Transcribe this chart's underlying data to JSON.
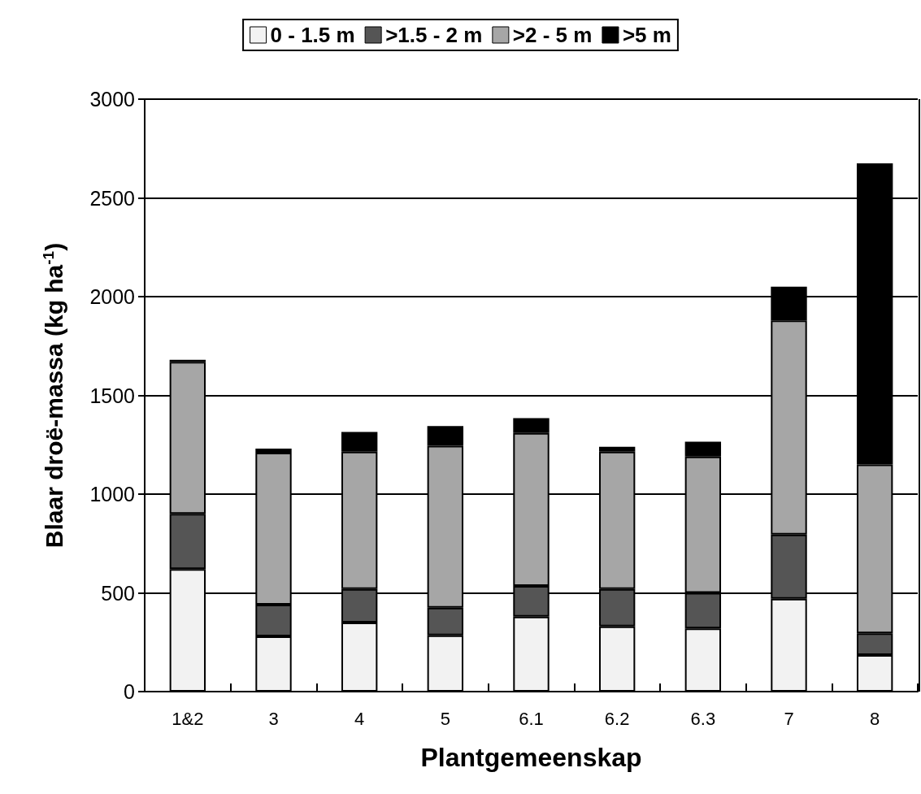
{
  "chart_data": {
    "type": "bar",
    "stacked": true,
    "xlabel": "Plantgemeenskap",
    "ylabel": "Blaar droë-massa (kg ha$^{-1}$)",
    "categories": [
      "1&2",
      "3",
      "4",
      "5",
      "6.1",
      "6.2",
      "6.3",
      "7",
      "8"
    ],
    "series": [
      {
        "name": "0 - 1.5 m",
        "color": "#f2f2f2",
        "values": [
          620,
          280,
          350,
          285,
          380,
          330,
          320,
          470,
          185
        ]
      },
      {
        "name": ">1.5 - 2 m",
        "color": "#555555",
        "values": [
          280,
          160,
          170,
          140,
          155,
          190,
          180,
          325,
          110
        ]
      },
      {
        "name": ">2 - 5 m",
        "color": "#a6a6a6",
        "values": [
          770,
          770,
          695,
          820,
          775,
          695,
          690,
          1085,
          855
        ]
      },
      {
        "name": ">5 m",
        "color": "#000000",
        "values": [
          10,
          20,
          100,
          100,
          75,
          25,
          75,
          170,
          1525
        ]
      }
    ],
    "ylim": [
      0,
      3000
    ],
    "yticks": [
      0,
      500,
      1000,
      1500,
      2000,
      2500,
      3000
    ],
    "grid": "y",
    "legend": "top"
  }
}
